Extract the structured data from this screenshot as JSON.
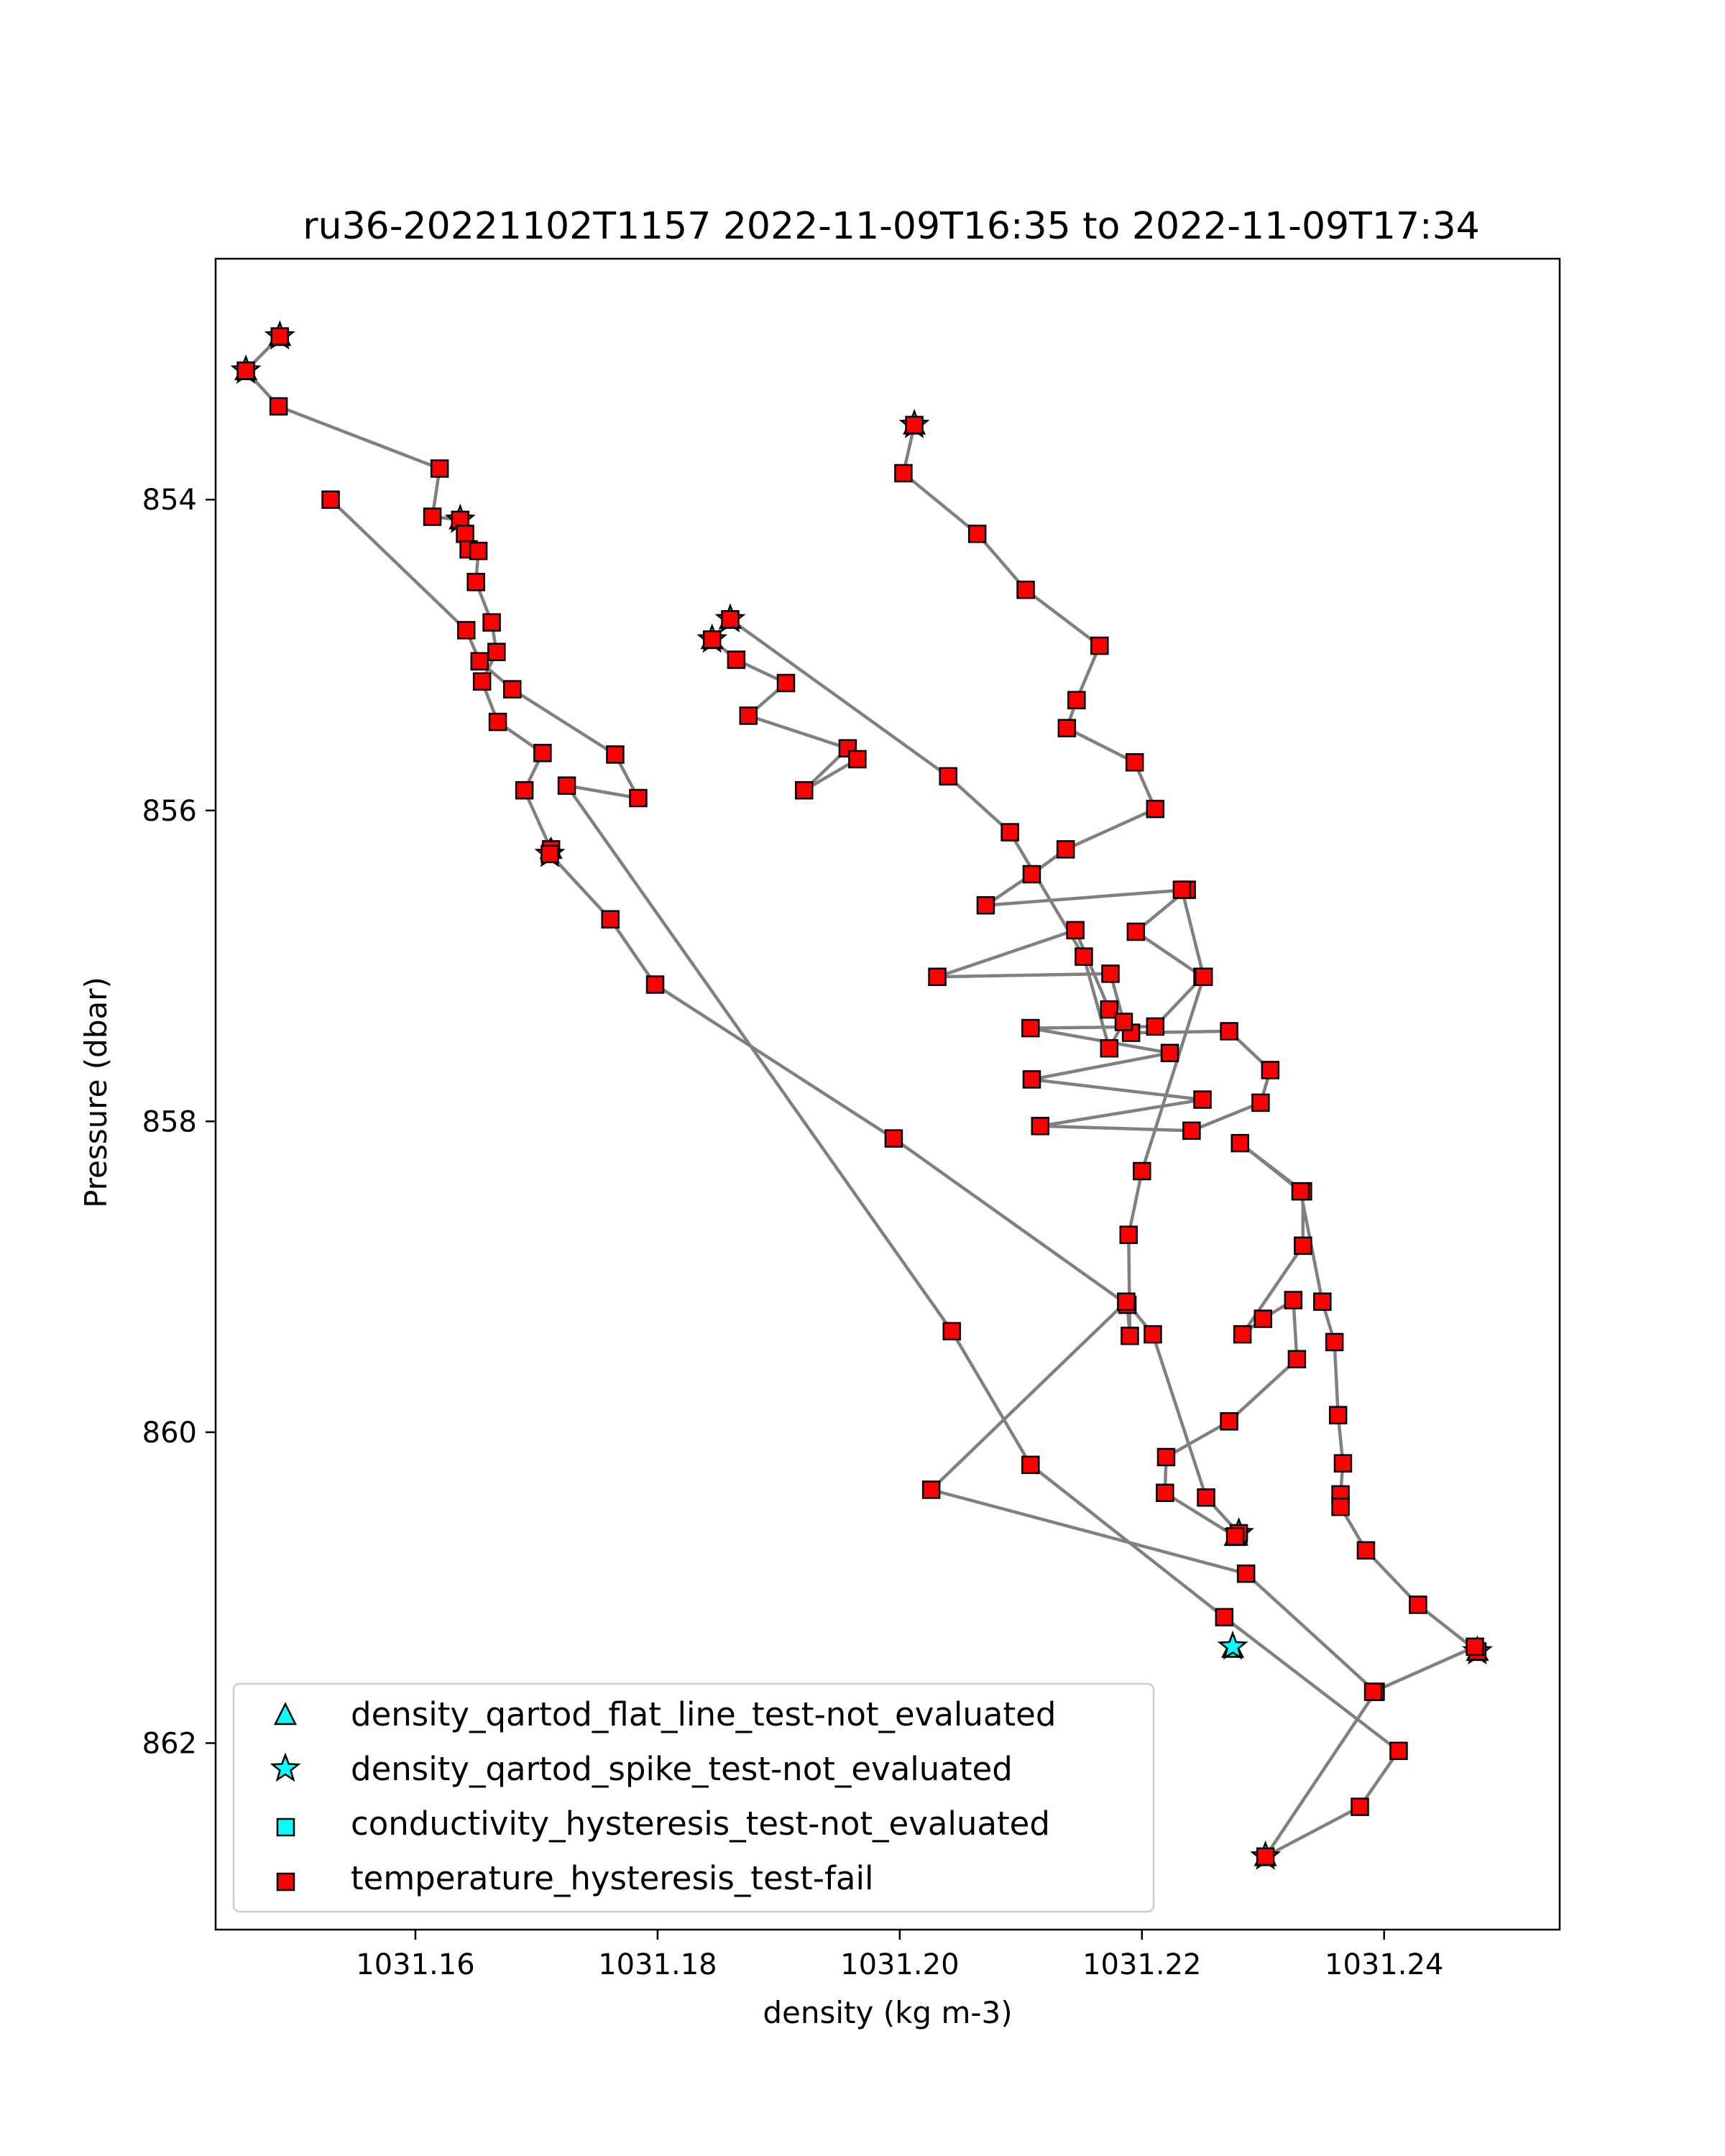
{
  "chart_data": {
    "type": "scatter",
    "title": "ru36-20221102T1157 2022-11-09T16:35 to 2022-11-09T17:34",
    "xlabel": "density (kg m-3)",
    "ylabel": "Pressure (dbar)",
    "xlim": [
      1031.1435,
      1031.2545
    ],
    "ylim": [
      863.2,
      852.45
    ],
    "y_inverted": true,
    "grid": false,
    "xticks": [
      1031.16,
      1031.18,
      1031.2,
      1031.22,
      1031.24
    ],
    "xtick_labels": [
      "1031.16",
      "1031.18",
      "1031.20",
      "1031.22",
      "1031.24"
    ],
    "yticks": [
      854,
      856,
      858,
      860,
      862
    ],
    "ytick_labels": [
      "854",
      "856",
      "858",
      "860",
      "862"
    ],
    "line_color": "#808080",
    "legend_position": "lower left",
    "legend": [
      {
        "label": "density_qartod_flat_line_test-not_evaluated",
        "marker": "triangle",
        "color": "#00ffff"
      },
      {
        "label": "density_qartod_spike_test-not_evaluated",
        "marker": "star",
        "color": "#00ffff"
      },
      {
        "label": "conductivity_hysteresis_test-not_evaluated",
        "marker": "square",
        "color": "#00ffff"
      },
      {
        "label": "temperature_hysteresis_test-fail",
        "marker": "square",
        "color": "#ff0000"
      }
    ],
    "profile": [
      [
        1031.2012,
        853.52
      ],
      [
        1031.2003,
        853.83
      ],
      [
        1031.2064,
        854.22
      ],
      [
        1031.2104,
        854.58
      ],
      [
        1031.2165,
        854.94
      ],
      [
        1031.2146,
        855.29
      ],
      [
        1031.2138,
        855.47
      ],
      [
        1031.2194,
        855.69
      ],
      [
        1031.2211,
        855.99
      ],
      [
        1031.2137,
        856.25
      ],
      [
        1031.2109,
        856.41
      ],
      [
        1031.2071,
        856.61
      ],
      [
        1031.2237,
        856.51
      ],
      [
        1031.2195,
        856.78
      ],
      [
        1031.225,
        857.07
      ],
      [
        1031.2211,
        857.39
      ],
      [
        1031.2108,
        857.4
      ],
      [
        1031.2223,
        857.56
      ],
      [
        1031.2109,
        857.73
      ],
      [
        1031.225,
        857.86
      ],
      [
        1031.2116,
        858.03
      ],
      [
        1031.2241,
        858.06
      ],
      [
        1031.2298,
        857.88
      ],
      [
        1031.2306,
        857.67
      ],
      [
        1031.2272,
        857.42
      ],
      [
        1031.2191,
        857.43
      ],
      [
        1031.2173,
        857.28
      ],
      [
        1031.2145,
        856.77
      ],
      [
        1031.2031,
        857.07
      ],
      [
        1031.2174,
        857.05
      ],
      [
        1031.2185,
        857.36
      ],
      [
        1031.2173,
        857.53
      ],
      [
        1031.2152,
        856.94
      ],
      [
        1031.2091,
        856.14
      ],
      [
        1031.204,
        855.78
      ],
      [
        1031.186,
        854.77
      ],
      [
        1031.1845,
        854.9
      ],
      [
        1031.1865,
        855.03
      ],
      [
        1031.1906,
        855.18
      ],
      [
        1031.1875,
        855.39
      ],
      [
        1031.1957,
        855.6
      ],
      [
        1031.1921,
        855.87
      ],
      [
        1031.1965,
        855.67
      ]
    ],
    "profile2": [
      [
        1031.1488,
        852.95
      ],
      [
        1031.146,
        853.17
      ],
      [
        1031.1487,
        853.4
      ],
      [
        1031.162,
        853.8
      ],
      [
        1031.1614,
        854.11
      ],
      [
        1031.1637,
        854.13
      ],
      [
        1031.1641,
        854.22
      ],
      [
        1031.1644,
        854.32
      ],
      [
        1031.1652,
        854.33
      ],
      [
        1031.165,
        854.53
      ],
      [
        1031.1663,
        854.79
      ],
      [
        1031.1667,
        854.98
      ],
      [
        1031.1655,
        855.17
      ],
      [
        1031.1668,
        855.43
      ],
      [
        1031.1705,
        855.63
      ],
      [
        1031.169,
        855.87
      ],
      [
        1031.1712,
        856.25
      ],
      [
        1031.1711,
        856.28
      ],
      [
        1031.1761,
        856.7
      ],
      [
        1031.1798,
        857.12
      ],
      [
        1031.1995,
        858.11
      ],
      [
        1031.2188,
        859.18
      ],
      [
        1031.219,
        859.38
      ],
      [
        1031.2189,
        858.73
      ],
      [
        1031.22,
        858.32
      ],
      [
        1031.2251,
        857.07
      ],
      [
        1031.2233,
        856.51
      ]
    ],
    "profile3": [
      [
        1031.153,
        854.0
      ],
      [
        1031.1642,
        854.84
      ],
      [
        1031.1653,
        855.04
      ],
      [
        1031.168,
        855.22
      ],
      [
        1031.1765,
        855.64
      ],
      [
        1031.1784,
        855.92
      ],
      [
        1031.1725,
        855.84
      ],
      [
        1031.2043,
        859.35
      ],
      [
        1031.2108,
        860.21
      ],
      [
        1031.2268,
        861.19
      ],
      [
        1031.2412,
        862.05
      ],
      [
        1031.238,
        862.41
      ],
      [
        1031.2302,
        862.73
      ],
      [
        1031.2393,
        861.67
      ],
      [
        1031.2286,
        860.91
      ],
      [
        1031.2026,
        860.37
      ],
      [
        1031.2187,
        859.16
      ],
      [
        1031.2209,
        859.37
      ],
      [
        1031.2253,
        860.42
      ],
      [
        1031.228,
        860.65
      ],
      [
        1031.2277,
        860.67
      ],
      [
        1031.2219,
        860.39
      ],
      [
        1031.222,
        860.16
      ],
      [
        1031.2272,
        859.93
      ],
      [
        1031.2328,
        859.53
      ],
      [
        1031.2325,
        859.15
      ],
      [
        1031.23,
        859.27
      ],
      [
        1031.2283,
        859.37
      ],
      [
        1031.2333,
        858.8
      ],
      [
        1031.2333,
        858.45
      ],
      [
        1031.2281,
        858.14
      ],
      [
        1031.2331,
        858.45
      ],
      [
        1031.2349,
        859.16
      ],
      [
        1031.2359,
        859.42
      ],
      [
        1031.2362,
        859.89
      ],
      [
        1031.2366,
        860.2
      ],
      [
        1031.2364,
        860.4
      ],
      [
        1031.2364,
        860.48
      ],
      [
        1031.2385,
        860.76
      ],
      [
        1031.2428,
        861.11
      ],
      [
        1031.2477,
        861.41
      ],
      [
        1031.2475,
        861.38
      ],
      [
        1031.2391,
        861.67
      ]
    ],
    "flat_line_not_evaluated_points": [
      [
        1031.1488,
        852.95
      ],
      [
        1031.146,
        853.17
      ],
      [
        1031.2012,
        853.52
      ],
      [
        1031.1637,
        854.13
      ],
      [
        1031.186,
        854.77
      ],
      [
        1031.1845,
        854.9
      ],
      [
        1031.1712,
        856.25
      ],
      [
        1031.2277,
        860.67
      ],
      [
        1031.2275,
        861.39
      ],
      [
        1031.2477,
        861.41
      ],
      [
        1031.2302,
        862.73
      ]
    ],
    "spike_not_evaluated_points": [
      [
        1031.1488,
        852.95
      ],
      [
        1031.146,
        853.17
      ],
      [
        1031.2012,
        853.52
      ],
      [
        1031.1637,
        854.13
      ],
      [
        1031.186,
        854.77
      ],
      [
        1031.1845,
        854.9
      ],
      [
        1031.1711,
        856.28
      ],
      [
        1031.228,
        860.65
      ],
      [
        1031.2275,
        861.38
      ],
      [
        1031.2477,
        861.41
      ],
      [
        1031.2302,
        862.73
      ]
    ]
  }
}
